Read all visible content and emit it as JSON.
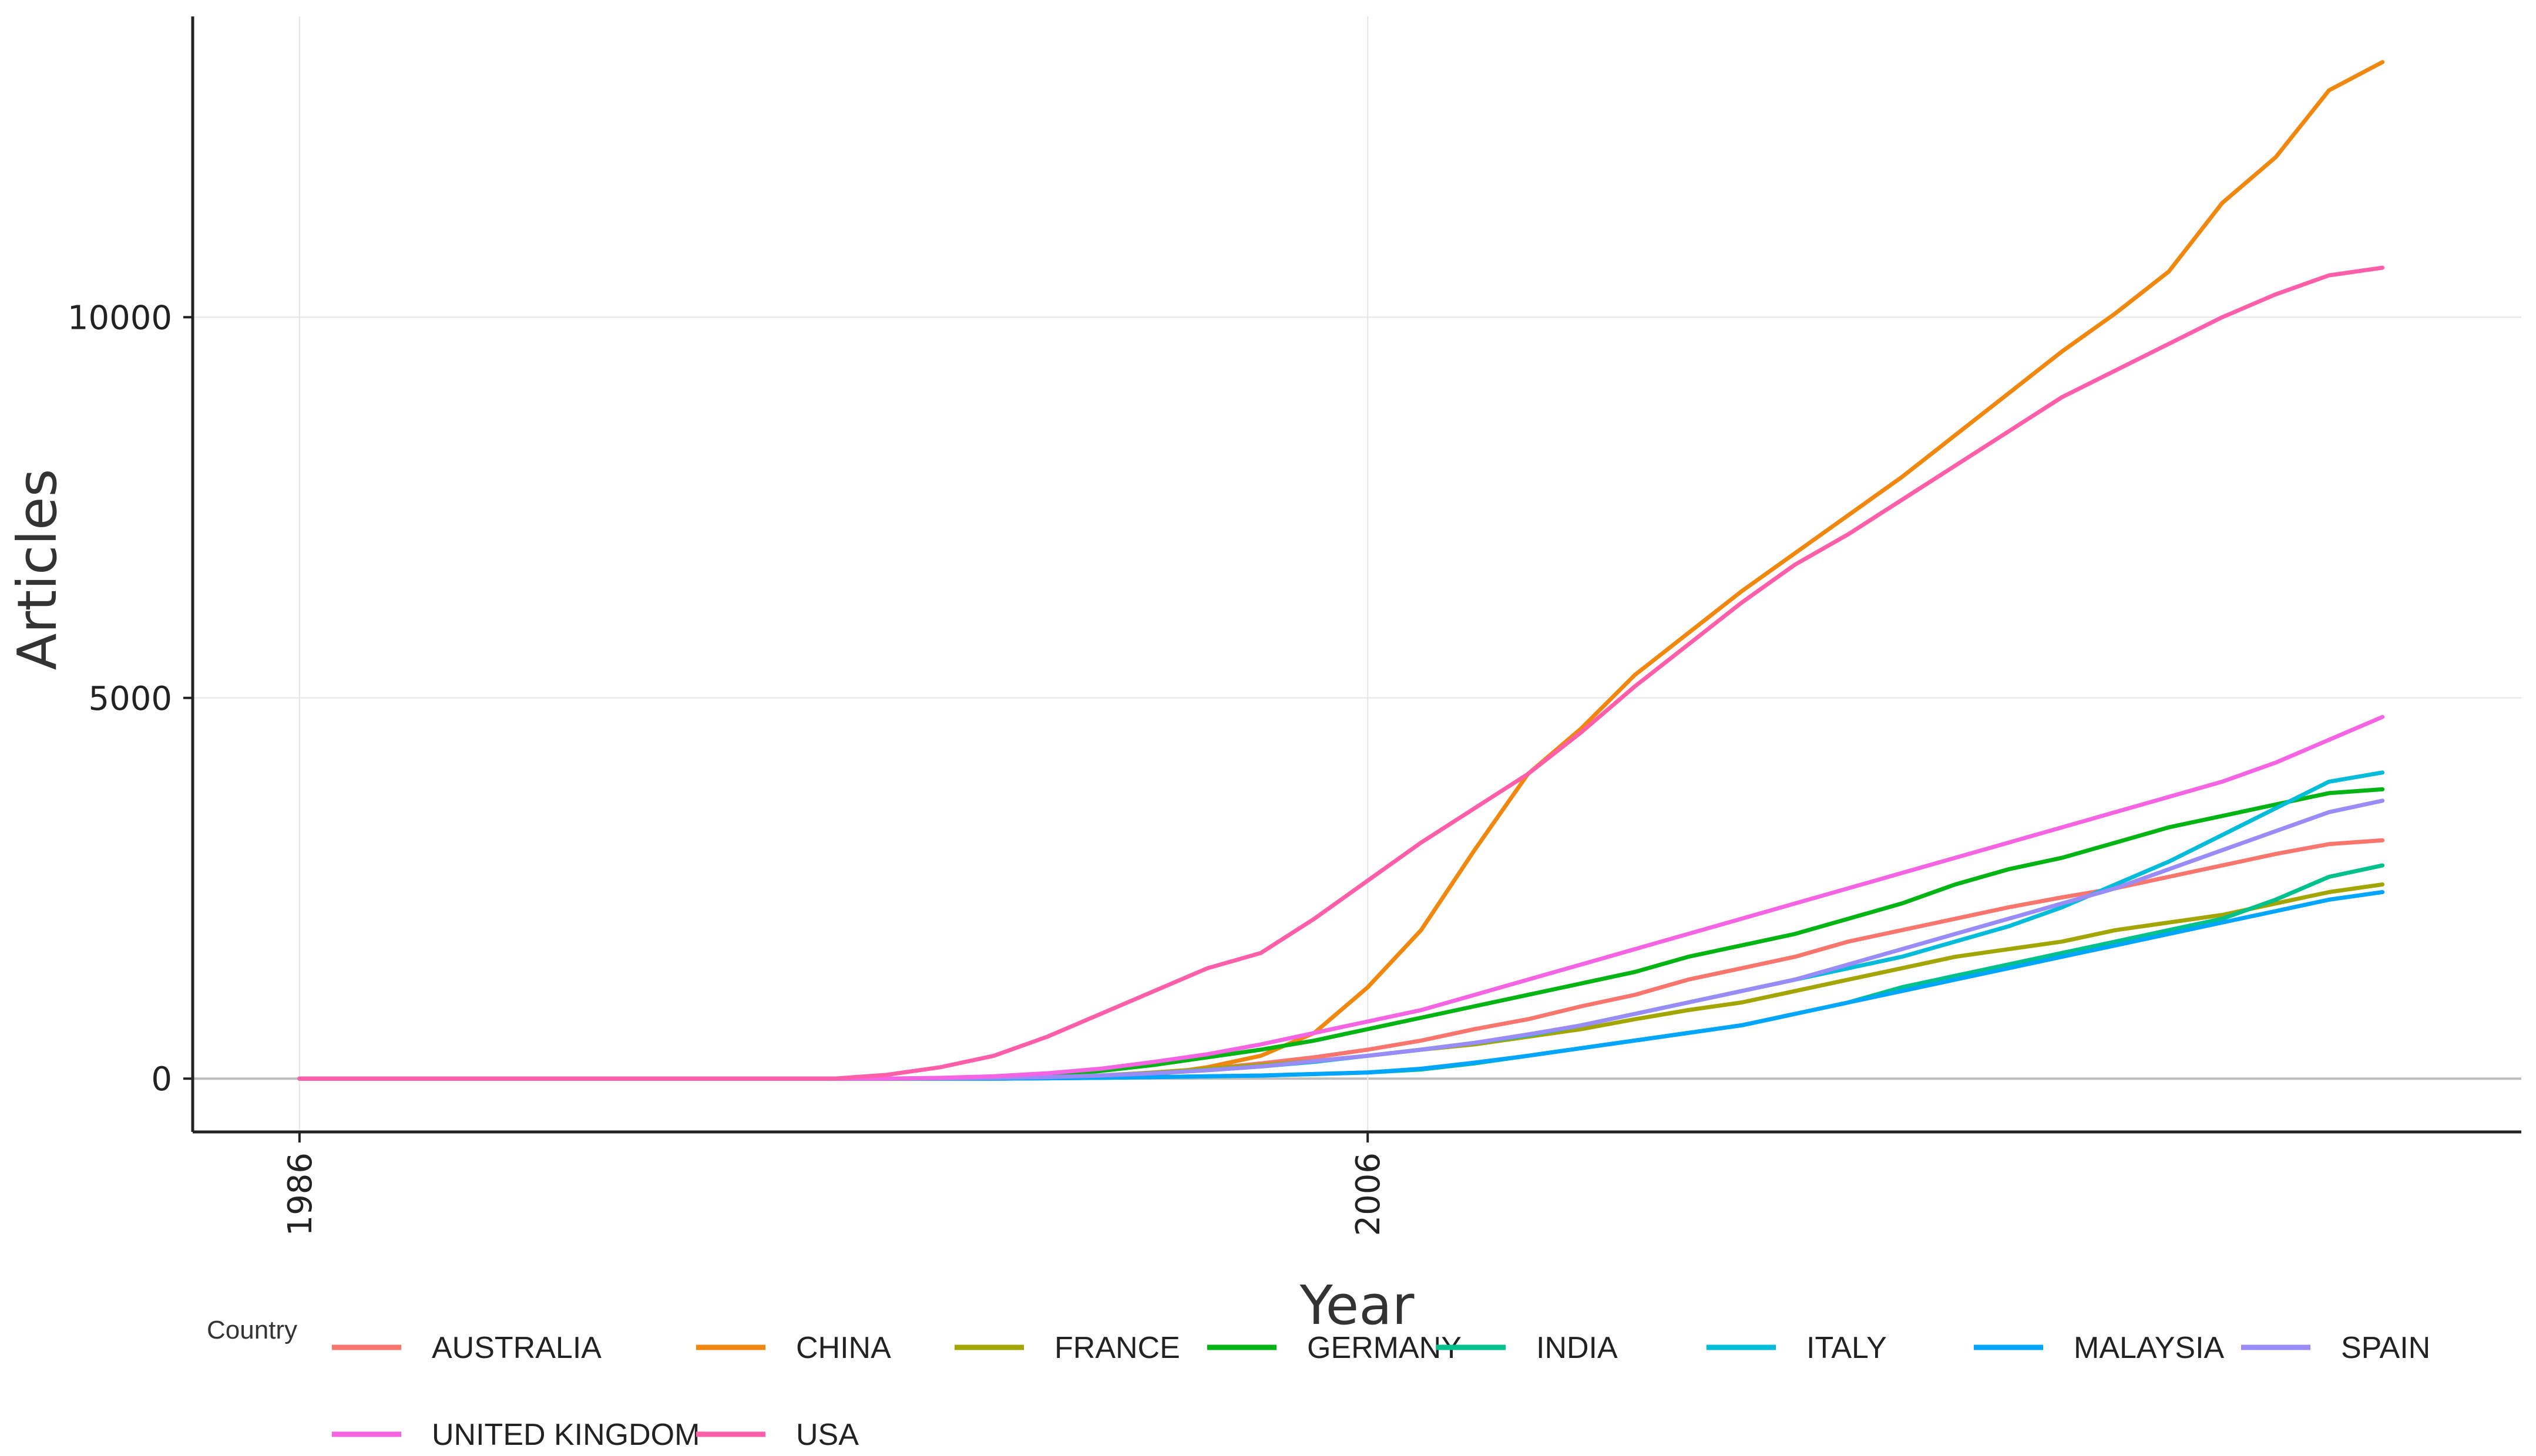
{
  "chart_data": {
    "type": "line",
    "xlabel": "Year",
    "ylabel": "Articles",
    "xlim": [
      1984,
      2027.6
    ],
    "ylim": [
      -700,
      13950
    ],
    "x_ticks": [
      1986,
      2006
    ],
    "y_ticks": [
      0,
      5000,
      10000
    ],
    "grid": true,
    "legend_title": "Country",
    "legend_position": "bottom",
    "x": [
      1986,
      1987,
      1988,
      1989,
      1990,
      1991,
      1992,
      1993,
      1994,
      1995,
      1996,
      1997,
      1998,
      1999,
      2000,
      2001,
      2002,
      2003,
      2004,
      2005,
      2006,
      2007,
      2008,
      2009,
      2010,
      2011,
      2012,
      2013,
      2014,
      2015,
      2016,
      2017,
      2018,
      2019,
      2020,
      2021,
      2022,
      2023,
      2024,
      2025
    ],
    "series": [
      {
        "name": "AUSTRALIA",
        "color": "#f8766d",
        "values": [
          0,
          0,
          0,
          0,
          0,
          0,
          0,
          0,
          0,
          0,
          0,
          0,
          5,
          10,
          20,
          40,
          80,
          130,
          200,
          280,
          380,
          500,
          650,
          780,
          950,
          1100,
          1300,
          1450,
          1600,
          1800,
          1950,
          2100,
          2250,
          2380,
          2500,
          2650,
          2800,
          2950,
          3080,
          3130
        ]
      },
      {
        "name": "CHINA",
        "color": "#f0870e",
        "values": [
          0,
          0,
          0,
          0,
          0,
          0,
          0,
          0,
          0,
          0,
          0,
          0,
          0,
          0,
          5,
          15,
          50,
          150,
          300,
          600,
          1200,
          1950,
          3000,
          4000,
          4600,
          5300,
          5850,
          6400,
          6900,
          7400,
          7900,
          8450,
          9000,
          9550,
          10050,
          10600,
          11500,
          12100,
          12980,
          13350
        ]
      },
      {
        "name": "FRANCE",
        "color": "#a3a500",
        "values": [
          0,
          0,
          0,
          0,
          0,
          0,
          0,
          0,
          0,
          0,
          0,
          0,
          5,
          10,
          20,
          40,
          80,
          130,
          180,
          230,
          300,
          380,
          450,
          550,
          650,
          780,
          900,
          1000,
          1150,
          1300,
          1450,
          1600,
          1700,
          1800,
          1950,
          2050,
          2150,
          2300,
          2450,
          2550
        ]
      },
      {
        "name": "GERMANY",
        "color": "#00b513",
        "values": [
          0,
          0,
          0,
          0,
          0,
          0,
          0,
          0,
          0,
          0,
          0,
          0,
          5,
          20,
          50,
          100,
          180,
          280,
          380,
          500,
          650,
          800,
          950,
          1100,
          1250,
          1400,
          1600,
          1750,
          1900,
          2100,
          2300,
          2550,
          2750,
          2900,
          3100,
          3300,
          3450,
          3600,
          3750,
          3800
        ]
      },
      {
        "name": "INDIA",
        "color": "#00c08b",
        "values": [
          0,
          0,
          0,
          0,
          0,
          0,
          0,
          0,
          0,
          0,
          0,
          0,
          0,
          0,
          5,
          10,
          20,
          30,
          40,
          60,
          80,
          120,
          200,
          300,
          400,
          500,
          600,
          700,
          850,
          1000,
          1200,
          1350,
          1500,
          1650,
          1800,
          1950,
          2100,
          2350,
          2650,
          2800
        ]
      },
      {
        "name": "ITALY",
        "color": "#00bcd8",
        "values": [
          0,
          0,
          0,
          0,
          0,
          0,
          0,
          0,
          0,
          0,
          0,
          0,
          5,
          10,
          20,
          40,
          70,
          110,
          160,
          220,
          300,
          380,
          470,
          570,
          700,
          850,
          1000,
          1150,
          1300,
          1450,
          1600,
          1800,
          2000,
          2250,
          2550,
          2850,
          3200,
          3550,
          3900,
          4020
        ]
      },
      {
        "name": "MALAYSIA",
        "color": "#00a5ff",
        "values": [
          0,
          0,
          0,
          0,
          0,
          0,
          0,
          0,
          0,
          0,
          0,
          0,
          0,
          0,
          5,
          10,
          20,
          30,
          40,
          60,
          80,
          130,
          210,
          300,
          400,
          500,
          600,
          700,
          850,
          1000,
          1150,
          1300,
          1450,
          1600,
          1750,
          1900,
          2050,
          2200,
          2350,
          2450
        ]
      },
      {
        "name": "SPAIN",
        "color": "#9a8cf7",
        "values": [
          0,
          0,
          0,
          0,
          0,
          0,
          0,
          0,
          0,
          0,
          0,
          0,
          5,
          10,
          20,
          40,
          70,
          110,
          160,
          230,
          300,
          380,
          470,
          580,
          700,
          850,
          1000,
          1150,
          1300,
          1500,
          1700,
          1900,
          2100,
          2300,
          2500,
          2750,
          3000,
          3250,
          3500,
          3650
        ]
      },
      {
        "name": "UNITED KINGDOM",
        "color": "#f564e3",
        "values": [
          0,
          0,
          0,
          0,
          0,
          0,
          0,
          0,
          0,
          0,
          0,
          0,
          10,
          30,
          70,
          130,
          220,
          320,
          450,
          600,
          750,
          900,
          1100,
          1300,
          1500,
          1700,
          1900,
          2100,
          2300,
          2500,
          2700,
          2900,
          3100,
          3300,
          3500,
          3700,
          3900,
          4150,
          4450,
          4750
        ]
      },
      {
        "name": "USA",
        "color": "#ff5fa9",
        "values": [
          0,
          0,
          0,
          0,
          0,
          0,
          0,
          0,
          0,
          0,
          0,
          50,
          150,
          300,
          550,
          850,
          1150,
          1450,
          1650,
          2100,
          2600,
          3100,
          3550,
          4000,
          4550,
          5150,
          5700,
          6250,
          6750,
          7150,
          7600,
          8050,
          8500,
          8950,
          9300,
          9650,
          10000,
          10300,
          10550,
          10650
        ]
      }
    ]
  }
}
